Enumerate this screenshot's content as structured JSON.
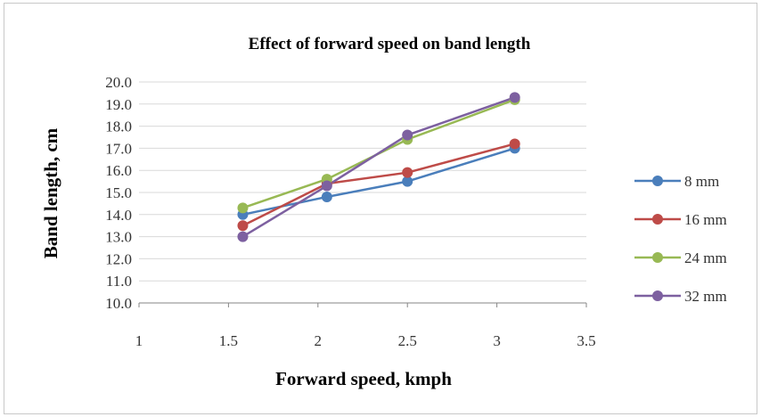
{
  "chart_data": {
    "type": "line",
    "title": "Effect of forward speed on band length",
    "xlabel": "Forward speed, kmph",
    "ylabel": "Band length, cm",
    "xlim": [
      1,
      3.5
    ],
    "ylim": [
      10,
      20
    ],
    "x_ticks": [
      "1",
      "1.5",
      "2",
      "2.5",
      "3",
      "3.5"
    ],
    "y_ticks": [
      "10.0",
      "11.0",
      "12.0",
      "13.0",
      "14.0",
      "15.0",
      "16.0",
      "17.0",
      "18.0",
      "19.0",
      "20.0"
    ],
    "grid": "horizontal",
    "legend_position": "right",
    "x": [
      1.58,
      2.05,
      2.5,
      3.1
    ],
    "series": [
      {
        "name": "8 mm",
        "color": "#4a7ebb",
        "values": [
          14.0,
          14.8,
          15.5,
          17.0
        ]
      },
      {
        "name": "16 mm",
        "color": "#be4b48",
        "values": [
          13.5,
          15.4,
          15.9,
          17.2
        ]
      },
      {
        "name": "24 mm",
        "color": "#98b954",
        "values": [
          14.3,
          15.6,
          17.4,
          19.2
        ]
      },
      {
        "name": "32 mm",
        "color": "#7d60a0",
        "values": [
          13.0,
          15.3,
          17.6,
          19.3
        ]
      }
    ]
  }
}
